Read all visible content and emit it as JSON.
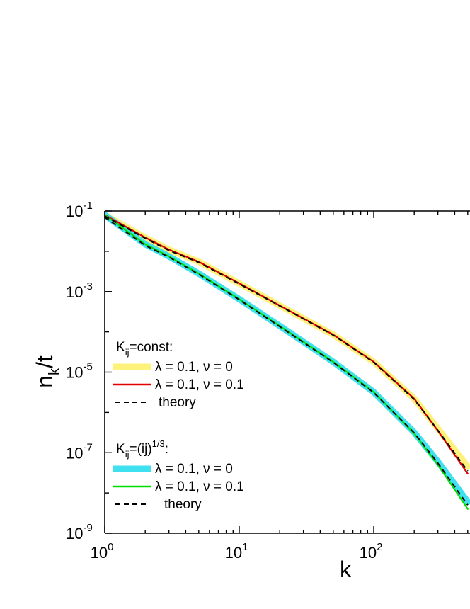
{
  "chart_data": {
    "type": "line",
    "xscale": "log",
    "yscale": "log",
    "xlim": [
      1,
      500
    ],
    "ylim": [
      1e-09,
      0.1
    ],
    "xlabel": "k",
    "ylabel": "n_k/t",
    "x_ticks": [
      {
        "value": 1,
        "base": "10",
        "exp": "0"
      },
      {
        "value": 10,
        "base": "10",
        "exp": "1"
      },
      {
        "value": 100,
        "base": "10",
        "exp": "2"
      }
    ],
    "y_ticks": [
      {
        "value": 0.1,
        "base": "10",
        "exp": "-1"
      },
      {
        "value": 0.001,
        "base": "10",
        "exp": "-3"
      },
      {
        "value": 1e-05,
        "base": "10",
        "exp": "-5"
      },
      {
        "value": 1e-07,
        "base": "10",
        "exp": "-7"
      },
      {
        "value": 1e-09,
        "base": "10",
        "exp": "-9"
      }
    ],
    "legend_groups": [
      {
        "title_main": "K",
        "title_sub": "ij",
        "title_rest": "=const:",
        "title_sup": "",
        "title_tail": ""
      },
      {
        "title_main": "K",
        "title_sub": "ij",
        "title_rest": "=(ij)",
        "title_sup": "1/3",
        "title_tail": ":"
      }
    ],
    "series": [
      {
        "group": 0,
        "label": "λ = 0.1,  ν = 0",
        "color": "#fff27a",
        "style": "thick",
        "x": [
          1,
          2,
          3,
          5,
          10,
          20,
          50,
          100,
          200,
          300,
          500
        ],
        "y": [
          0.08,
          0.022,
          0.011,
          0.0055,
          0.0016,
          0.00045,
          8.5e-05,
          1.8e-05,
          2.2e-06,
          4e-07,
          4.5e-08
        ]
      },
      {
        "group": 0,
        "label": "λ = 0.1,  ν = 0.1",
        "color": "#e00000",
        "style": "solid",
        "x": [
          1,
          2,
          3,
          5,
          10,
          20,
          50,
          100,
          200,
          300,
          500
        ],
        "y": [
          0.08,
          0.022,
          0.011,
          0.0055,
          0.0016,
          0.00045,
          8.5e-05,
          1.8e-05,
          2.2e-06,
          3.5e-07,
          3e-08
        ]
      },
      {
        "group": 0,
        "label": "theory",
        "color": "#000000",
        "style": "dashed",
        "x": [
          1,
          2,
          3,
          5,
          10,
          20,
          50,
          100,
          200,
          300,
          500
        ],
        "y": [
          0.075,
          0.021,
          0.0105,
          0.0053,
          0.00155,
          0.00044,
          8.3e-05,
          1.75e-05,
          2.1e-06,
          3.6e-07,
          3.5e-08
        ]
      },
      {
        "group": 1,
        "label": "λ = 0.1,  ν = 0",
        "color": "#3fe0ef",
        "style": "thick",
        "x": [
          1,
          2,
          3,
          5,
          10,
          20,
          50,
          100,
          200,
          300,
          500
        ],
        "y": [
          0.08,
          0.015,
          0.0075,
          0.0028,
          0.00065,
          0.00014,
          1.8e-05,
          3.2e-06,
          3.2e-07,
          6e-08,
          6e-09
        ]
      },
      {
        "group": 1,
        "label": "λ = 0.1,  ν = 0.1",
        "color": "#00e000",
        "style": "solid",
        "x": [
          1,
          2,
          3,
          5,
          10,
          20,
          50,
          100,
          200,
          300,
          500
        ],
        "y": [
          0.08,
          0.015,
          0.0075,
          0.0028,
          0.00065,
          0.00014,
          1.8e-05,
          3.2e-06,
          3e-07,
          5e-08,
          4e-09
        ]
      },
      {
        "group": 1,
        "label": "theory",
        "color": "#000000",
        "style": "dashed",
        "x": [
          1,
          2,
          3,
          5,
          10,
          20,
          50,
          100,
          200,
          300,
          500
        ],
        "y": [
          0.07,
          0.014,
          0.0072,
          0.0027,
          0.00063,
          0.000135,
          1.75e-05,
          3.1e-06,
          3.1e-07,
          5.5e-08,
          5e-09
        ]
      }
    ]
  }
}
